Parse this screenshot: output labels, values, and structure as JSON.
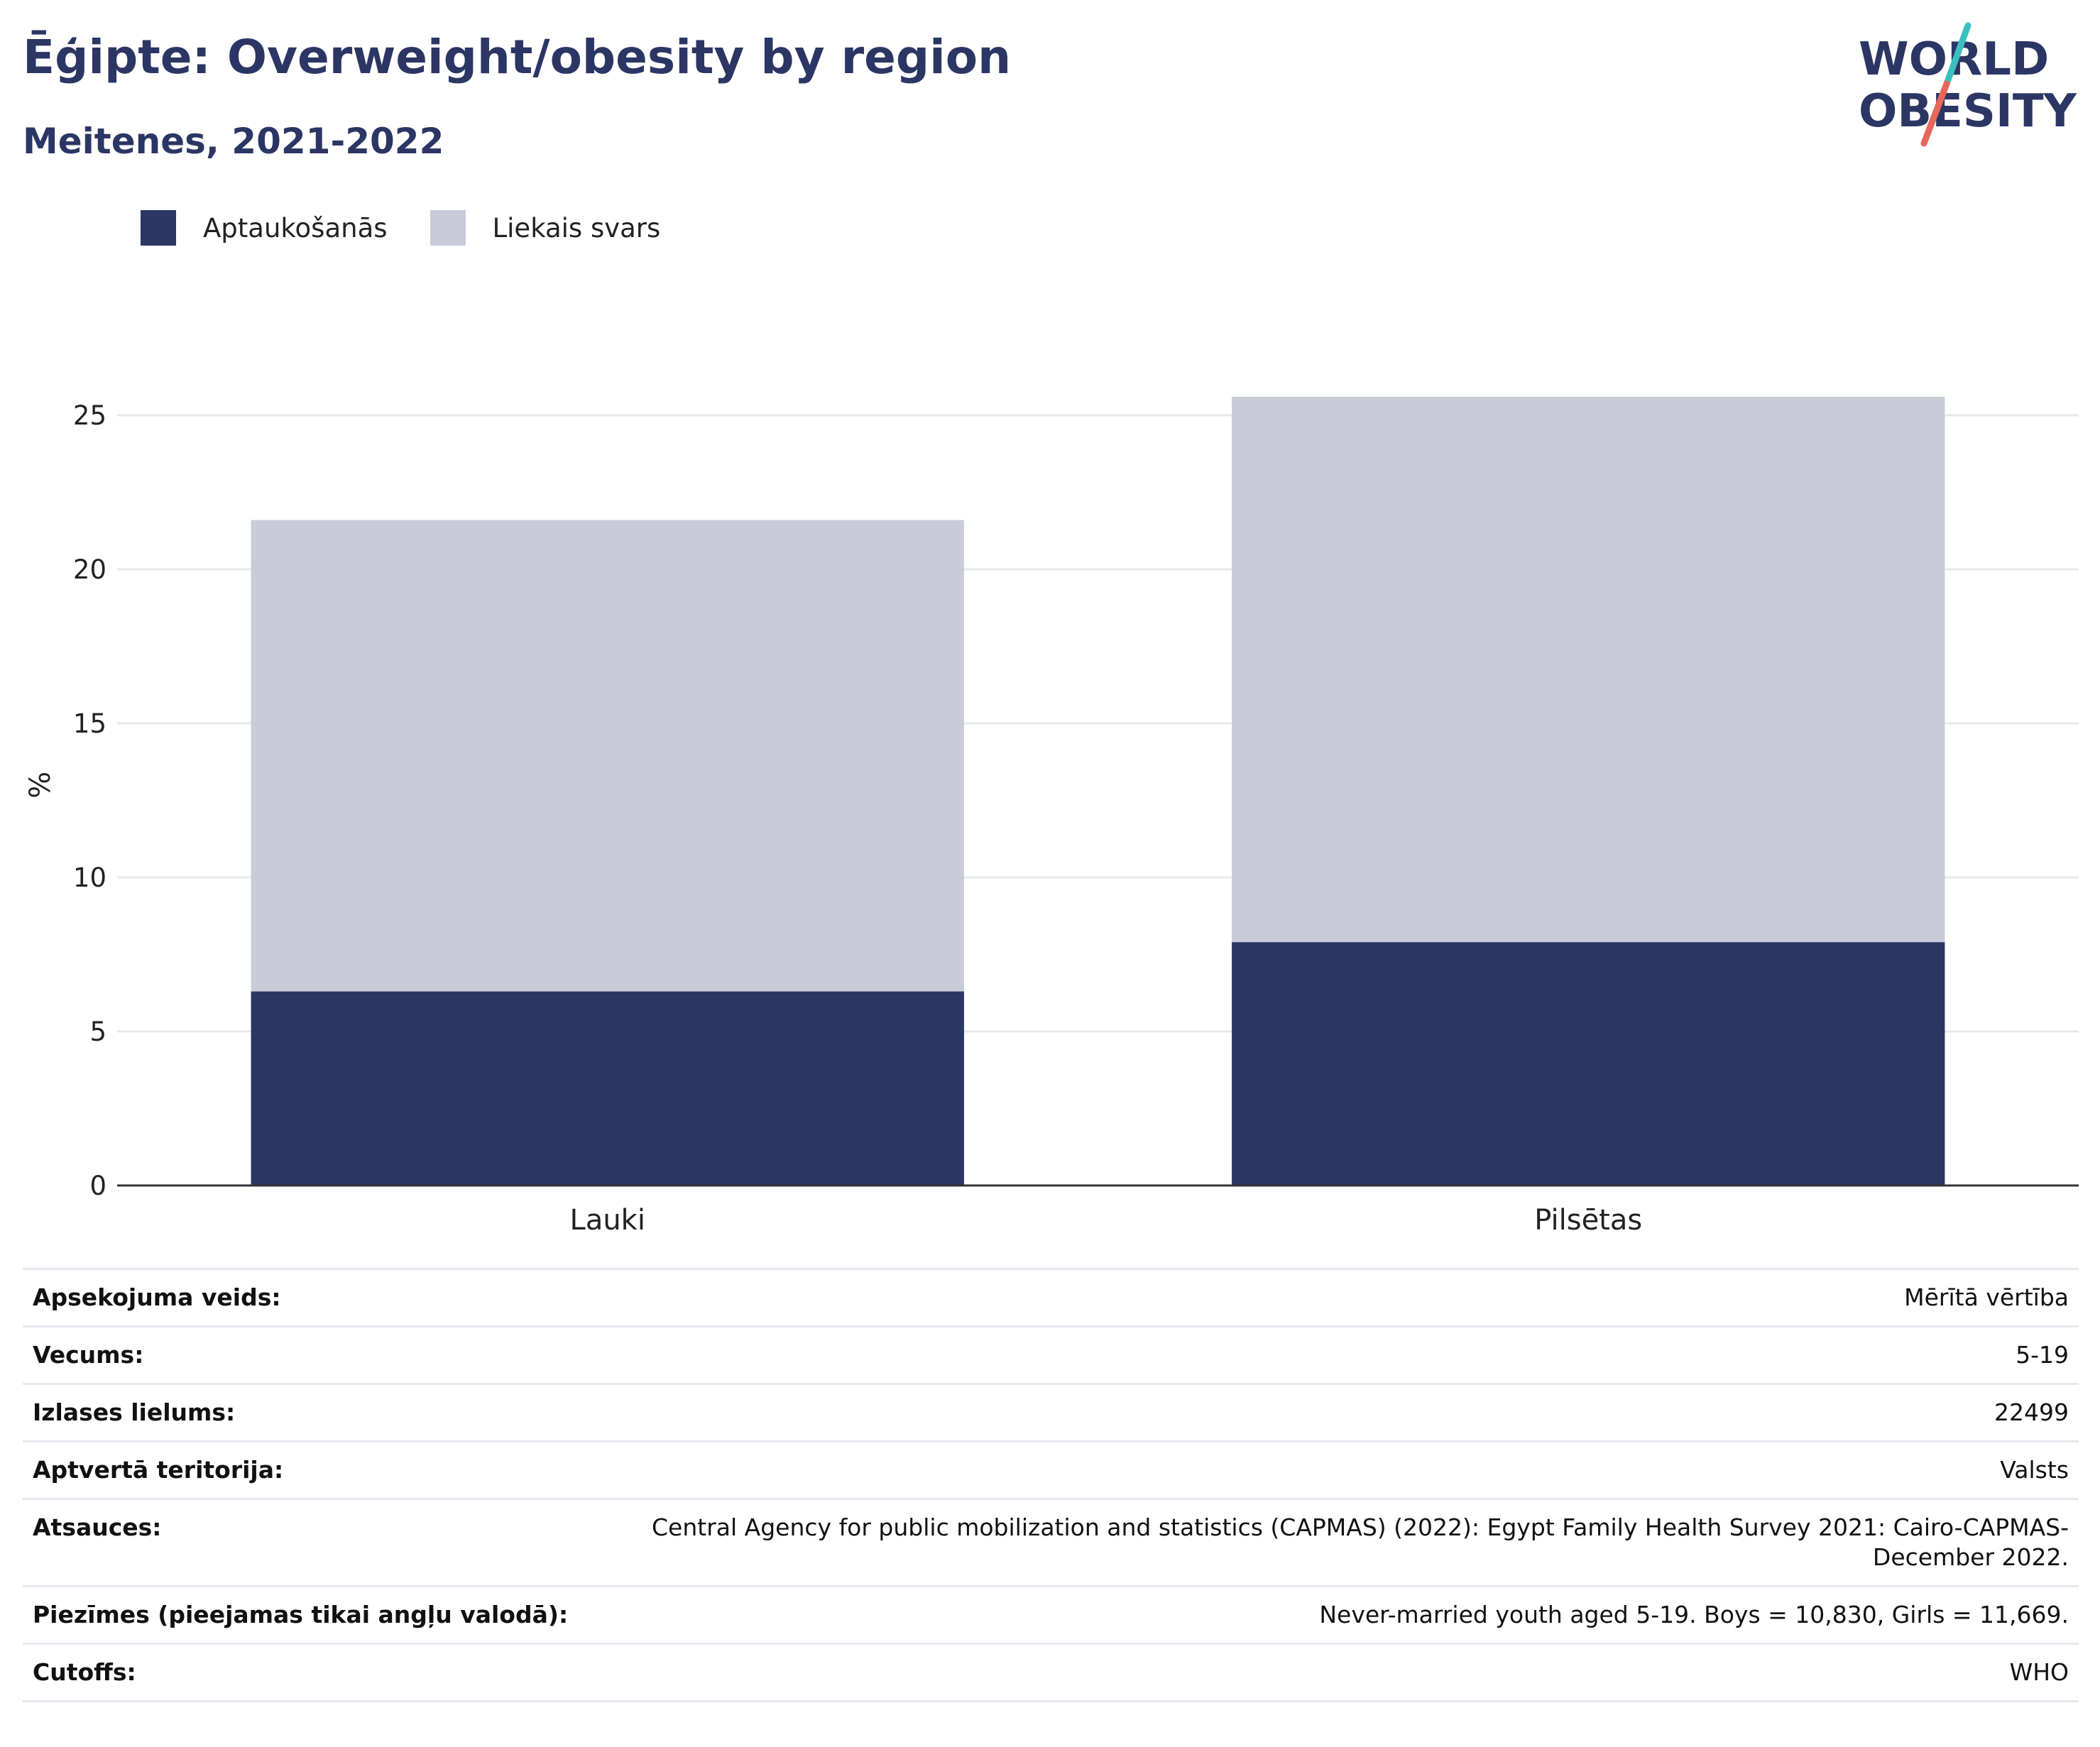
{
  "header": {
    "title": "Ēģipte: Overweight/obesity by region",
    "subtitle": "Meitenes, 2021-2022"
  },
  "logo": {
    "line1": "WORLD",
    "line2": "OBESITY",
    "colors": {
      "text": "#2b3664",
      "slash_top": "#3bbfbf",
      "slash_bottom": "#e8665a"
    }
  },
  "legend": {
    "items": [
      {
        "label": "Aptaukošanās",
        "color": "#2b3664"
      },
      {
        "label": "Liekais svars",
        "color": "#c9ccd8"
      }
    ]
  },
  "chart_data": {
    "type": "bar",
    "stacked": true,
    "categories": [
      "Lauki",
      "Pilsētas"
    ],
    "series": [
      {
        "name": "Aptaukošanās",
        "values": [
          6.3,
          7.9
        ],
        "color": "#2b3664"
      },
      {
        "name": "Liekais svars",
        "values": [
          15.3,
          17.7
        ],
        "color": "#c9ccd8"
      }
    ],
    "ylabel": "%",
    "xlabel": "",
    "ylim": [
      0,
      26
    ],
    "yticks": [
      0,
      5,
      10,
      15,
      20,
      25
    ],
    "grid": true,
    "legend_position": "top-left"
  },
  "info": [
    {
      "key": "Apsekojuma veids:",
      "value": "Mērītā vērtība"
    },
    {
      "key": "Vecums:",
      "value": "5-19"
    },
    {
      "key": "Izlases lielums:",
      "value": "22499"
    },
    {
      "key": "Aptvertā teritorija:",
      "value": "Valsts"
    },
    {
      "key": "Atsauces:",
      "value": "Central Agency for public mobilization and statistics (CAPMAS) (2022): Egypt Family Health Survey 2021: Cairo-CAPMAS-December 2022."
    },
    {
      "key": "Piezīmes (pieejamas tikai angļu valodā):",
      "value": "Never-married youth aged 5-19. Boys = 10,830, Girls = 11,669."
    },
    {
      "key": "Cutoffs:",
      "value": "WHO"
    }
  ]
}
